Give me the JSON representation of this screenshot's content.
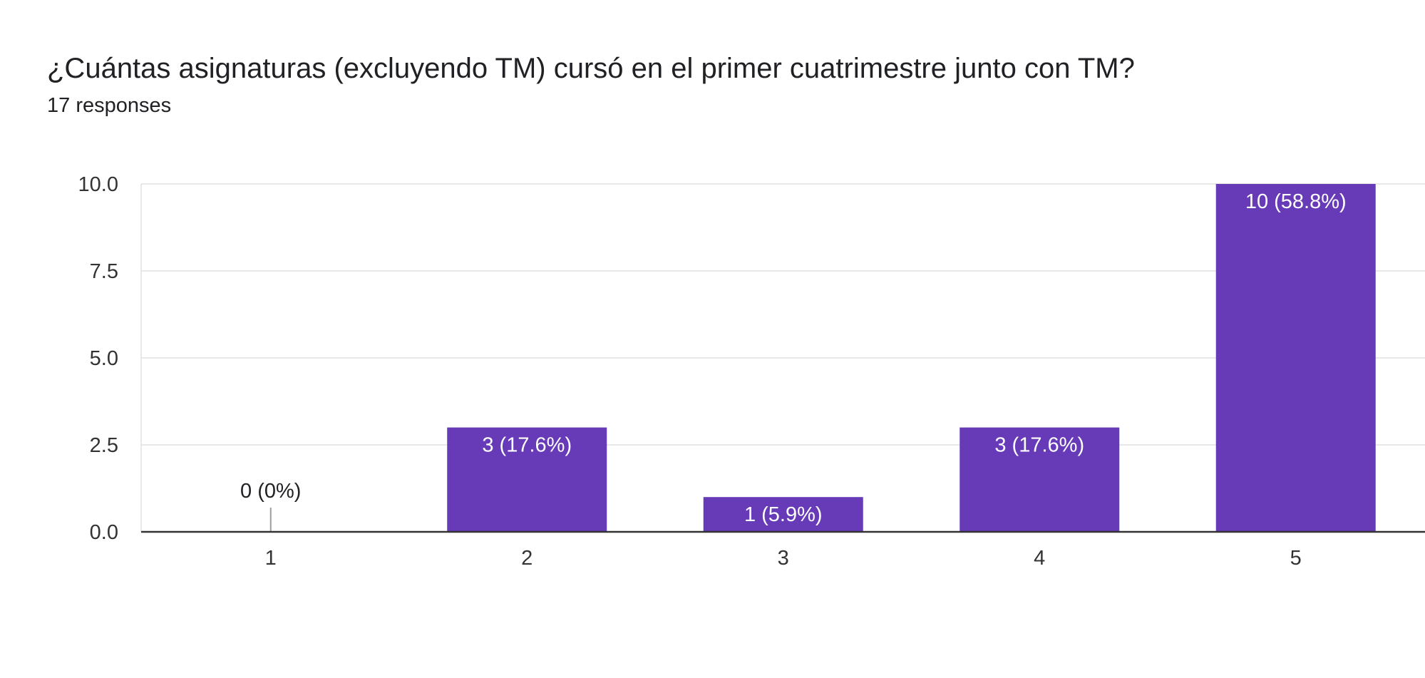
{
  "header": {
    "title": "¿Cuántas asignaturas (excluyendo TM) cursó en el primer cuatrimestre junto con TM?",
    "subtitle": "17 responses"
  },
  "colors": {
    "bar": "#673ab7",
    "grid": "#e8e8e8",
    "axis": "#333333",
    "label_inside": "#ffffff",
    "label_outside": "#202124"
  },
  "chart_data": {
    "type": "bar",
    "title": "¿Cuántas asignaturas (excluyendo TM) cursó en el primer cuatrimestre junto con TM?",
    "subtitle": "17 responses",
    "xlabel": "",
    "ylabel": "",
    "categories": [
      "1",
      "2",
      "3",
      "4",
      "5"
    ],
    "values": [
      0,
      3,
      1,
      3,
      10
    ],
    "data_labels": [
      "0 (0%)",
      "3 (17.6%)",
      "1 (5.9%)",
      "3 (17.6%)",
      "10 (58.8%)"
    ],
    "ylim": [
      0,
      10
    ],
    "yticks": [
      "0.0",
      "2.5",
      "5.0",
      "7.5",
      "10.0"
    ],
    "ytick_values": [
      0,
      2.5,
      5,
      7.5,
      10
    ],
    "grid": true,
    "legend": false
  }
}
